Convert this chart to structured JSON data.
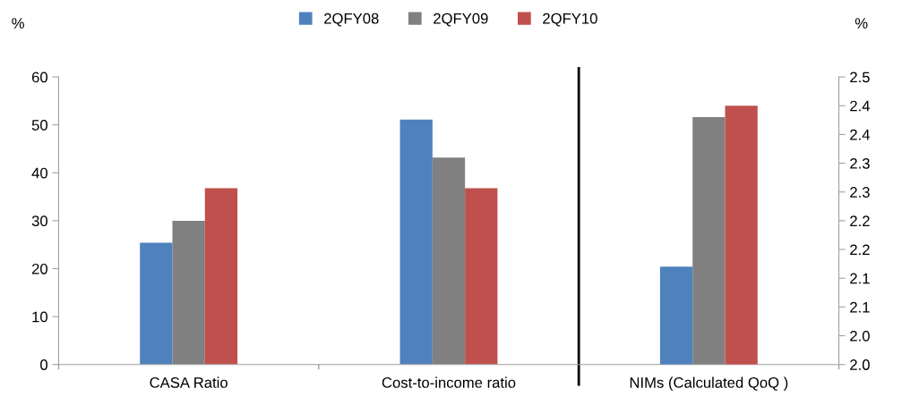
{
  "chart_data": {
    "type": "bar",
    "ylabel": "%",
    "y2label": "%",
    "categories": [
      "CASA Ratio",
      "Cost-to-income ratio",
      "NIMs (Calculated QoQ )"
    ],
    "series": [
      {
        "name": "2QFY08",
        "color": "#4f81bd",
        "values": [
          25.4,
          51.1,
          null
        ]
      },
      {
        "name": "2QFY09",
        "color": "#808080",
        "values": [
          30,
          43.2,
          null
        ]
      },
      {
        "name": "2QFY10",
        "color": "#c0504d",
        "values": [
          36.8,
          36.8,
          null
        ]
      },
      {
        "color": "#4f81bd",
        "axis": "y2",
        "values": [
          null,
          null,
          2.17
        ]
      },
      {
        "color": "#808080",
        "axis": "y2",
        "values": [
          null,
          null,
          2.43
        ]
      },
      {
        "color": "#c0504d",
        "axis": "y2",
        "values": [
          null,
          null,
          2.45
        ]
      }
    ],
    "ylim": [
      0,
      60
    ],
    "yticks": [
      0,
      10,
      20,
      30,
      40,
      50,
      60
    ],
    "y2lim": [
      2.0,
      2.5
    ],
    "y2ticks": [
      {
        "value": 2.0,
        "label": "2.0"
      },
      {
        "value": 2.05,
        "label": "2.0"
      },
      {
        "value": 2.1,
        "label": "2.1"
      },
      {
        "value": 2.15,
        "label": "2.1"
      },
      {
        "value": 2.2,
        "label": "2.2"
      },
      {
        "value": 2.25,
        "label": "2.2"
      },
      {
        "value": 2.3,
        "label": "2.3"
      },
      {
        "value": 2.35,
        "label": "2.3"
      },
      {
        "value": 2.4,
        "label": "2.4"
      },
      {
        "value": 2.45,
        "label": "2.4"
      },
      {
        "value": 2.5,
        "label": "2.5"
      }
    ],
    "legend": "top",
    "grid": false
  }
}
